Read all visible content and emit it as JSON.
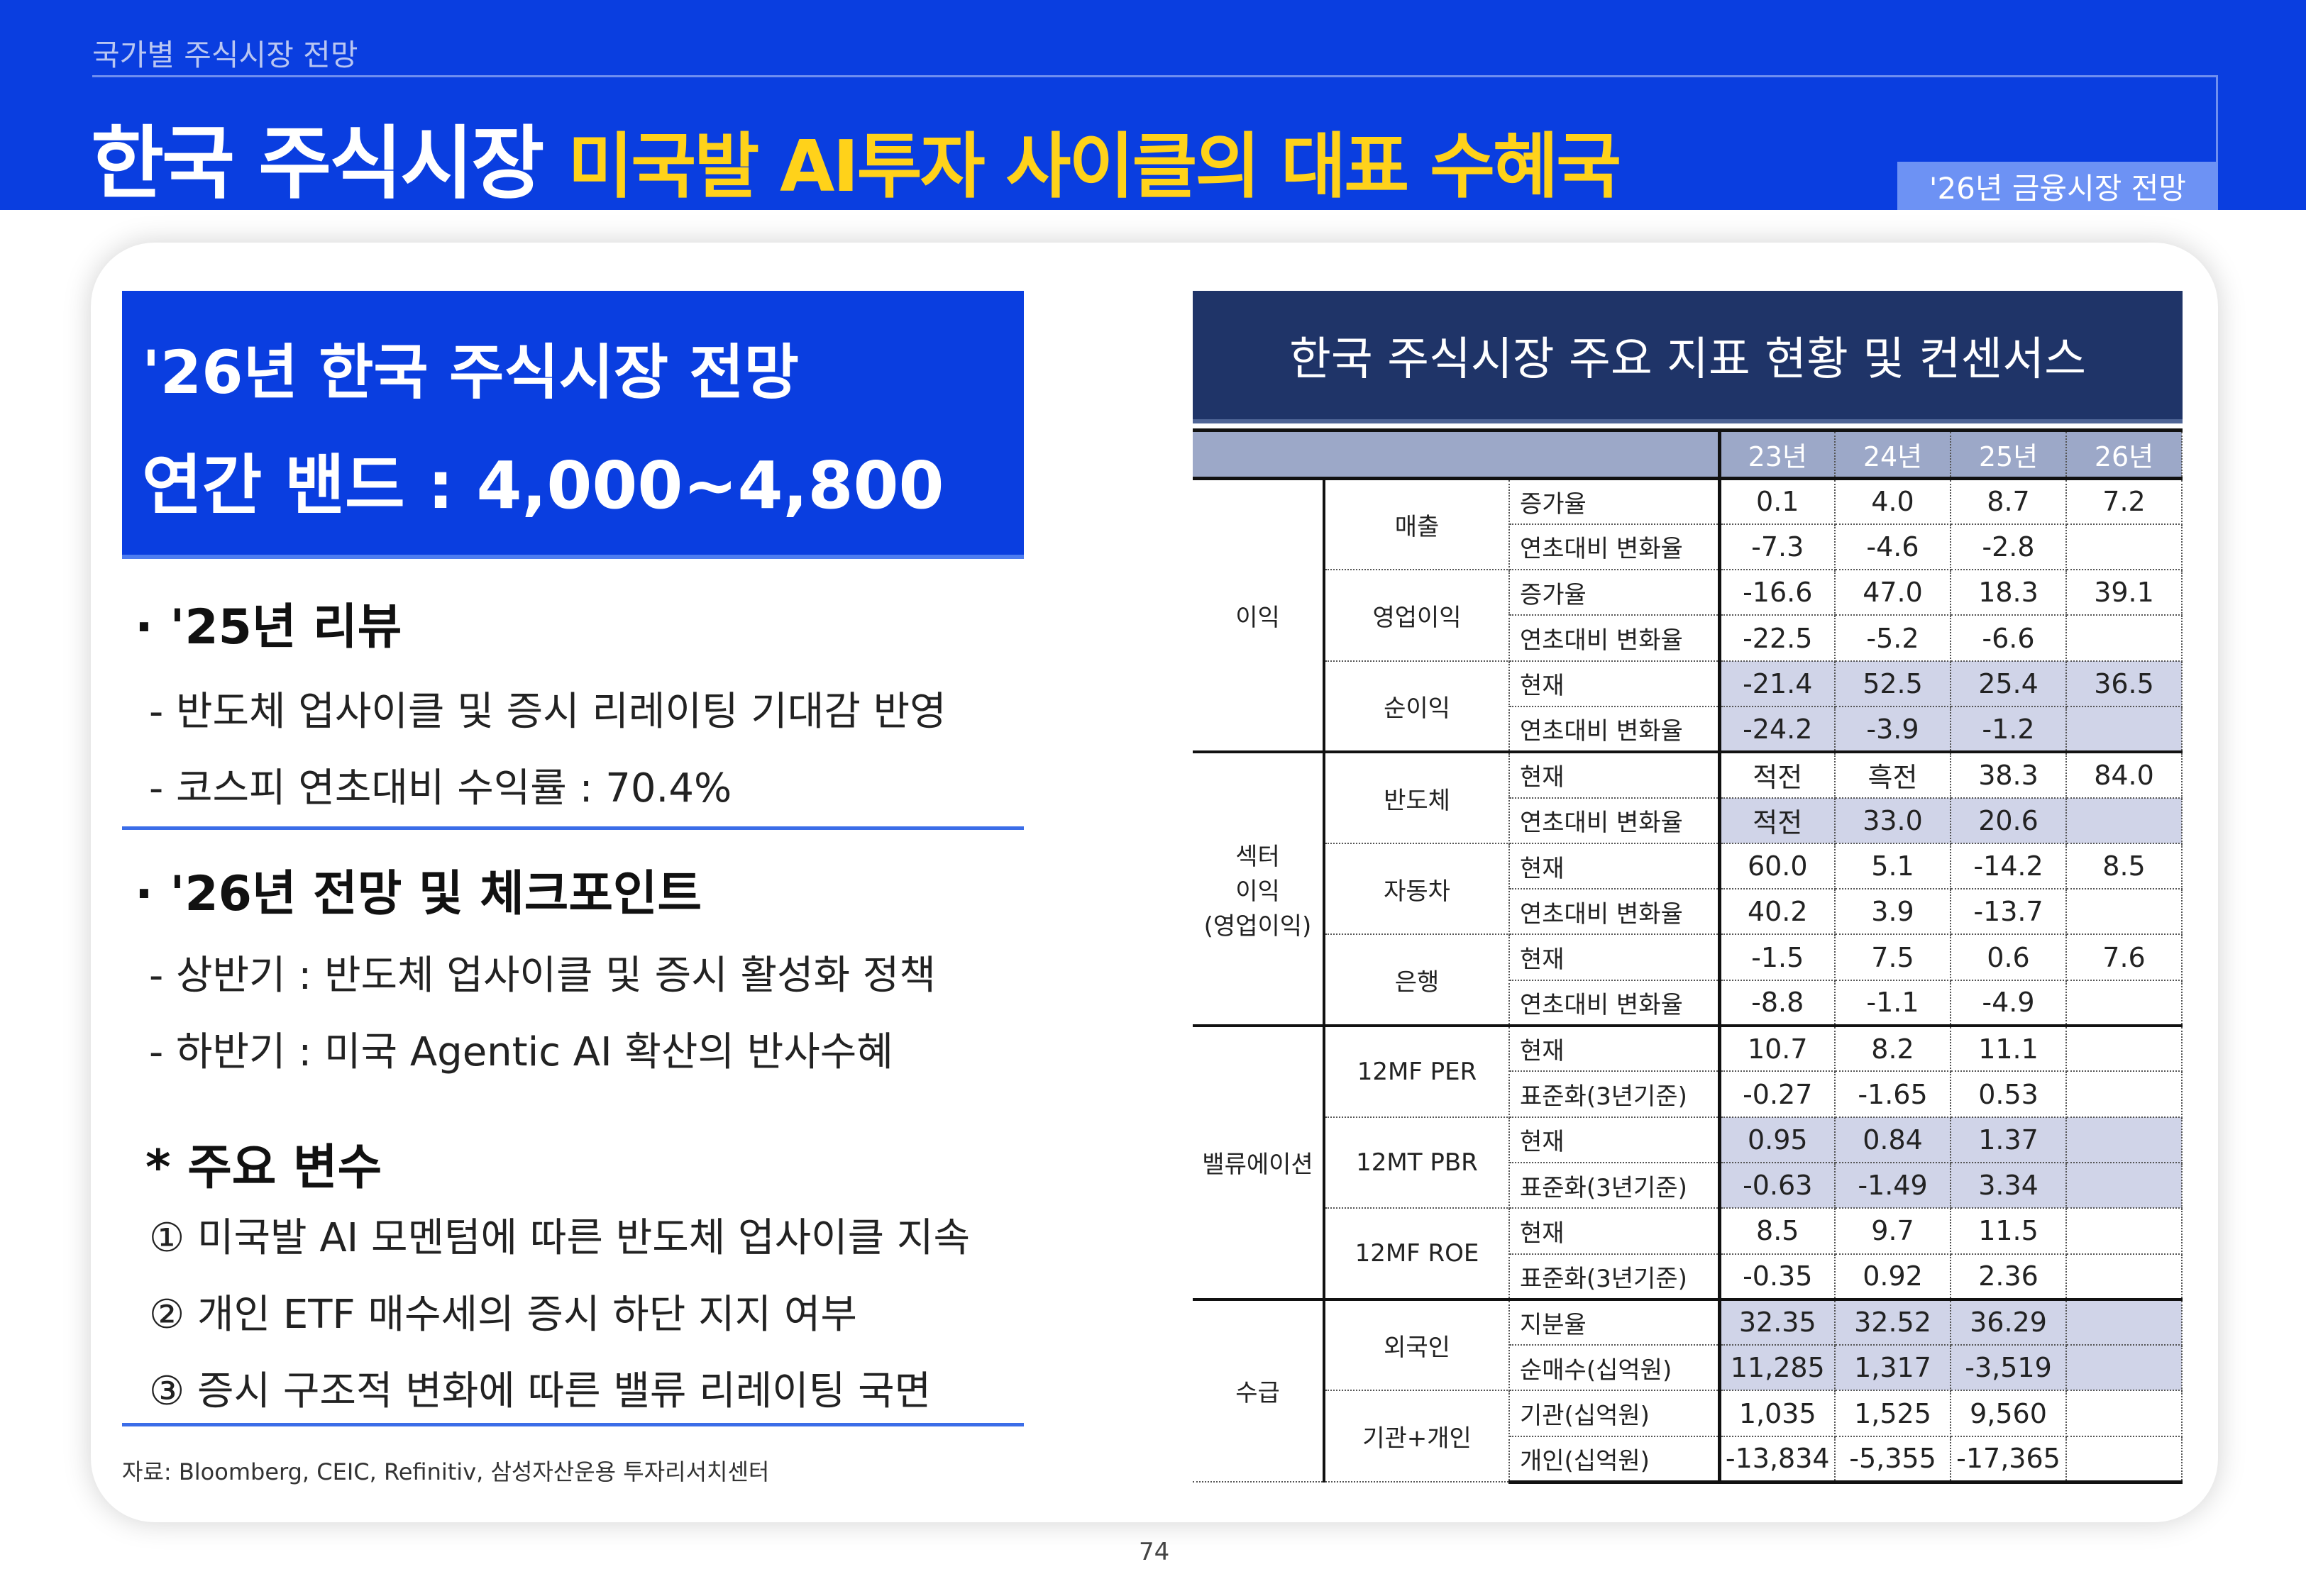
{
  "header": {
    "breadcrumb": "국가별 주식시장 전망",
    "title_main": "한국 주식시장",
    "title_sub": "미국발 AI투자 사이클의 대표 수혜국",
    "badge": "'26년 금융시장 전망"
  },
  "left": {
    "box_title": "'26년 한국 주식시장 전망",
    "box_band": "연간 밴드 : 4,000~4,800",
    "review_heading": "· '25년 리뷰",
    "review_items": [
      "- 반도체 업사이클 및 증시 리레이팅 기대감 반영",
      "- 코스피 연초대비 수익률 : 70.4%"
    ],
    "outlook_heading": "· '26년 전망 및 체크포인트",
    "outlook_items": [
      "- 상반기 : 반도체 업사이클 및 증시 활성화 정책",
      "- 하반기 : 미국 Agentic AI 확산의 반사수혜"
    ],
    "vars_heading": "* 주요 변수",
    "vars_items": [
      "① 미국발 AI 모멘텀에 따른 반도체 업사이클 지속",
      "② 개인 ETF 매수세의 증시 하단 지지 여부",
      "③ 증시 구조적 변화에 따른 밸류 리레이팅 국면"
    ],
    "source": "자료: Bloomberg, CEIC, Refinitiv, 삼성자산운용 투자리서치센터"
  },
  "table": {
    "title": "한국 주식시장 주요 지표 현황 및 컨센서스",
    "years": [
      "23년",
      "24년",
      "25년",
      "26년"
    ],
    "groups": [
      {
        "name": "이익",
        "subs": [
          {
            "name": "매출",
            "rows": [
              {
                "label": "증가율",
                "values": [
                  "0.1",
                  "4.0",
                  "8.7",
                  "7.2"
                ]
              },
              {
                "label": "연초대비 변화율",
                "values": [
                  "-7.3",
                  "-4.6",
                  "-2.8",
                  ""
                ]
              }
            ]
          },
          {
            "name": "영업이익",
            "rows": [
              {
                "label": "증가율",
                "values": [
                  "-16.6",
                  "47.0",
                  "18.3",
                  "39.1"
                ]
              },
              {
                "label": "연초대비 변화율",
                "values": [
                  "-22.5",
                  "-5.2",
                  "-6.6",
                  ""
                ]
              }
            ]
          },
          {
            "name": "순이익",
            "rows": [
              {
                "label": "현재",
                "values": [
                  "-21.4",
                  "52.5",
                  "25.4",
                  "36.5"
                ],
                "highlight": true
              },
              {
                "label": "연초대비 변화율",
                "values": [
                  "-24.2",
                  "-3.9",
                  "-1.2",
                  ""
                ],
                "highlight": true
              }
            ]
          }
        ]
      },
      {
        "name": "섹터\n이익\n(영업이익)",
        "subs": [
          {
            "name": "반도체",
            "rows": [
              {
                "label": "현재",
                "values": [
                  "적전",
                  "흑전",
                  "38.3",
                  "84.0"
                ]
              },
              {
                "label": "연초대비 변화율",
                "values": [
                  "적전",
                  "33.0",
                  "20.6",
                  ""
                ],
                "highlight": true
              }
            ]
          },
          {
            "name": "자동차",
            "rows": [
              {
                "label": "현재",
                "values": [
                  "60.0",
                  "5.1",
                  "-14.2",
                  "8.5"
                ]
              },
              {
                "label": "연초대비 변화율",
                "values": [
                  "40.2",
                  "3.9",
                  "-13.7",
                  ""
                ]
              }
            ]
          },
          {
            "name": "은행",
            "rows": [
              {
                "label": "현재",
                "values": [
                  "-1.5",
                  "7.5",
                  "0.6",
                  "7.6"
                ]
              },
              {
                "label": "연초대비 변화율",
                "values": [
                  "-8.8",
                  "-1.1",
                  "-4.9",
                  ""
                ]
              }
            ]
          }
        ]
      },
      {
        "name": "밸류에이션",
        "subs": [
          {
            "name": "12MF PER",
            "rows": [
              {
                "label": "현재",
                "values": [
                  "10.7",
                  "8.2",
                  "11.1",
                  ""
                ]
              },
              {
                "label": "표준화(3년기준)",
                "values": [
                  "-0.27",
                  "-1.65",
                  "0.53",
                  ""
                ]
              }
            ]
          },
          {
            "name": "12MT PBR",
            "rows": [
              {
                "label": "현재",
                "values": [
                  "0.95",
                  "0.84",
                  "1.37",
                  ""
                ],
                "highlight": true
              },
              {
                "label": "표준화(3년기준)",
                "values": [
                  "-0.63",
                  "-1.49",
                  "3.34",
                  ""
                ],
                "highlight": true
              }
            ]
          },
          {
            "name": "12MF ROE",
            "rows": [
              {
                "label": "현재",
                "values": [
                  "8.5",
                  "9.7",
                  "11.5",
                  ""
                ]
              },
              {
                "label": "표준화(3년기준)",
                "values": [
                  "-0.35",
                  "0.92",
                  "2.36",
                  ""
                ]
              }
            ]
          }
        ]
      },
      {
        "name": "수급",
        "subs": [
          {
            "name": "외국인",
            "rows": [
              {
                "label": "지분율",
                "values": [
                  "32.35",
                  "32.52",
                  "36.29",
                  ""
                ],
                "highlight": true
              },
              {
                "label": "순매수(십억원)",
                "values": [
                  "11,285",
                  "1,317",
                  "-3,519",
                  ""
                ],
                "highlight": true
              }
            ]
          },
          {
            "name": "기관+개인",
            "rows": [
              {
                "label": "기관(십억원)",
                "values": [
                  "1,035",
                  "1,525",
                  "9,560",
                  ""
                ]
              },
              {
                "label": "개인(십억원)",
                "values": [
                  "-13,834",
                  "-5,355",
                  "-17,365",
                  ""
                ]
              }
            ]
          }
        ]
      }
    ]
  },
  "page_number": "74",
  "colors": {
    "brand_blue": "#0a3ee0",
    "title_yellow": "#ffd21a",
    "table_title_bg": "#1f3468",
    "header_row_bg": "#9ca8c8",
    "highlight": "#d0d4e8"
  }
}
